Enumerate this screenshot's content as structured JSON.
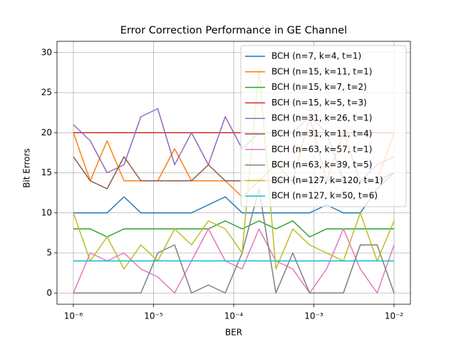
{
  "chart_data": {
    "type": "line",
    "title": "Error Correction Performance in GE Channel",
    "x_label": "BER",
    "y_label": "Bit Errors",
    "log_x": true,
    "grid": true,
    "legend": "upper right",
    "x": [
      1e-06,
      1.6238e-06,
      2.6367e-06,
      4.2813e-06,
      6.9519e-06,
      1.1288e-05,
      1.833e-05,
      2.9764e-05,
      4.8329e-05,
      7.8476e-05,
      0.00012743,
      0.00020691,
      0.00033598,
      0.00054556,
      0.00088587,
      0.0014384,
      0.0023357,
      0.0037927,
      0.0061585,
      0.01
    ],
    "xlim": [
      6.25e-07,
      0.016
    ],
    "xticks": [
      {
        "value": 1e-06,
        "label": "10⁻⁶"
      },
      {
        "value": 1e-05,
        "label": "10⁻⁵"
      },
      {
        "value": 0.0001,
        "label": "10⁻⁴"
      },
      {
        "value": 0.001,
        "label": "10⁻³"
      },
      {
        "value": 0.01,
        "label": "10⁻²"
      }
    ],
    "ylim": [
      -1.4,
      31.4
    ],
    "yticks": [
      0,
      5,
      10,
      15,
      20,
      25,
      30
    ],
    "series": [
      {
        "name": "BCH (n=7, k=4, t=1)",
        "color": "#1f77b4",
        "values": [
          10,
          10,
          10,
          12,
          10,
          10,
          10,
          10,
          11,
          12,
          10,
          10,
          10,
          10,
          10,
          11,
          10,
          10,
          13,
          15
        ]
      },
      {
        "name": "BCH (n=15, k=11, t=1)",
        "color": "#ff7f0e",
        "values": [
          20,
          14,
          19,
          14,
          14,
          14,
          18,
          14,
          14,
          14,
          12,
          14,
          16,
          14,
          22,
          14,
          20,
          14,
          14,
          20
        ]
      },
      {
        "name": "BCH (n=15, k=7, t=2)",
        "color": "#2ca02c",
        "values": [
          8,
          8,
          7,
          8,
          8,
          8,
          8,
          8,
          8,
          9,
          8,
          9,
          8,
          9,
          7,
          8,
          8,
          8,
          8,
          8
        ]
      },
      {
        "name": "BCH (n=15, k=5, t=3)",
        "color": "#d62728",
        "values": [
          20,
          20,
          20,
          20,
          20,
          20,
          20,
          20,
          20,
          20,
          20,
          20,
          20,
          20,
          20,
          20,
          20,
          20,
          20,
          20
        ]
      },
      {
        "name": "BCH (n=31, k=26, t=1)",
        "color": "#9467bd",
        "values": [
          21,
          19,
          15,
          16,
          22,
          23,
          16,
          20,
          16,
          22,
          18,
          20,
          20,
          20,
          22,
          20,
          14,
          14,
          16,
          17
        ]
      },
      {
        "name": "BCH (n=31, k=11, t=4)",
        "color": "#8c564b",
        "values": [
          17,
          14,
          13,
          17,
          14,
          14,
          14,
          14,
          16,
          14,
          14,
          14,
          14,
          14,
          14,
          14,
          14,
          14,
          14,
          15
        ]
      },
      {
        "name": "BCH (n=63, k=57, t=1)",
        "color": "#e377c2",
        "values": [
          0,
          5,
          4,
          5,
          3,
          2,
          0,
          4,
          8,
          4,
          3,
          8,
          4,
          3,
          0,
          3,
          8,
          3,
          0,
          6
        ]
      },
      {
        "name": "BCH (n=63, k=39, t=5)",
        "color": "#7f7f7f",
        "values": [
          0,
          0,
          0,
          0,
          0,
          5,
          6,
          0,
          1,
          0,
          5,
          13,
          0,
          5,
          0,
          0,
          0,
          6,
          6,
          0
        ]
      },
      {
        "name": "BCH (n=127, k=120, t=1)",
        "color": "#bcbd22",
        "values": [
          10,
          4,
          7,
          3,
          6,
          4,
          8,
          6,
          9,
          8,
          5,
          28,
          3,
          8,
          6,
          5,
          4,
          10,
          4,
          9
        ]
      },
      {
        "name": "BCH (n=127, k=50, t=6)",
        "color": "#17becf",
        "values": [
          4,
          4,
          4,
          4,
          4,
          4,
          4,
          4,
          4,
          4,
          4,
          4,
          4,
          4,
          4,
          4,
          4,
          4,
          4,
          4
        ]
      }
    ]
  }
}
